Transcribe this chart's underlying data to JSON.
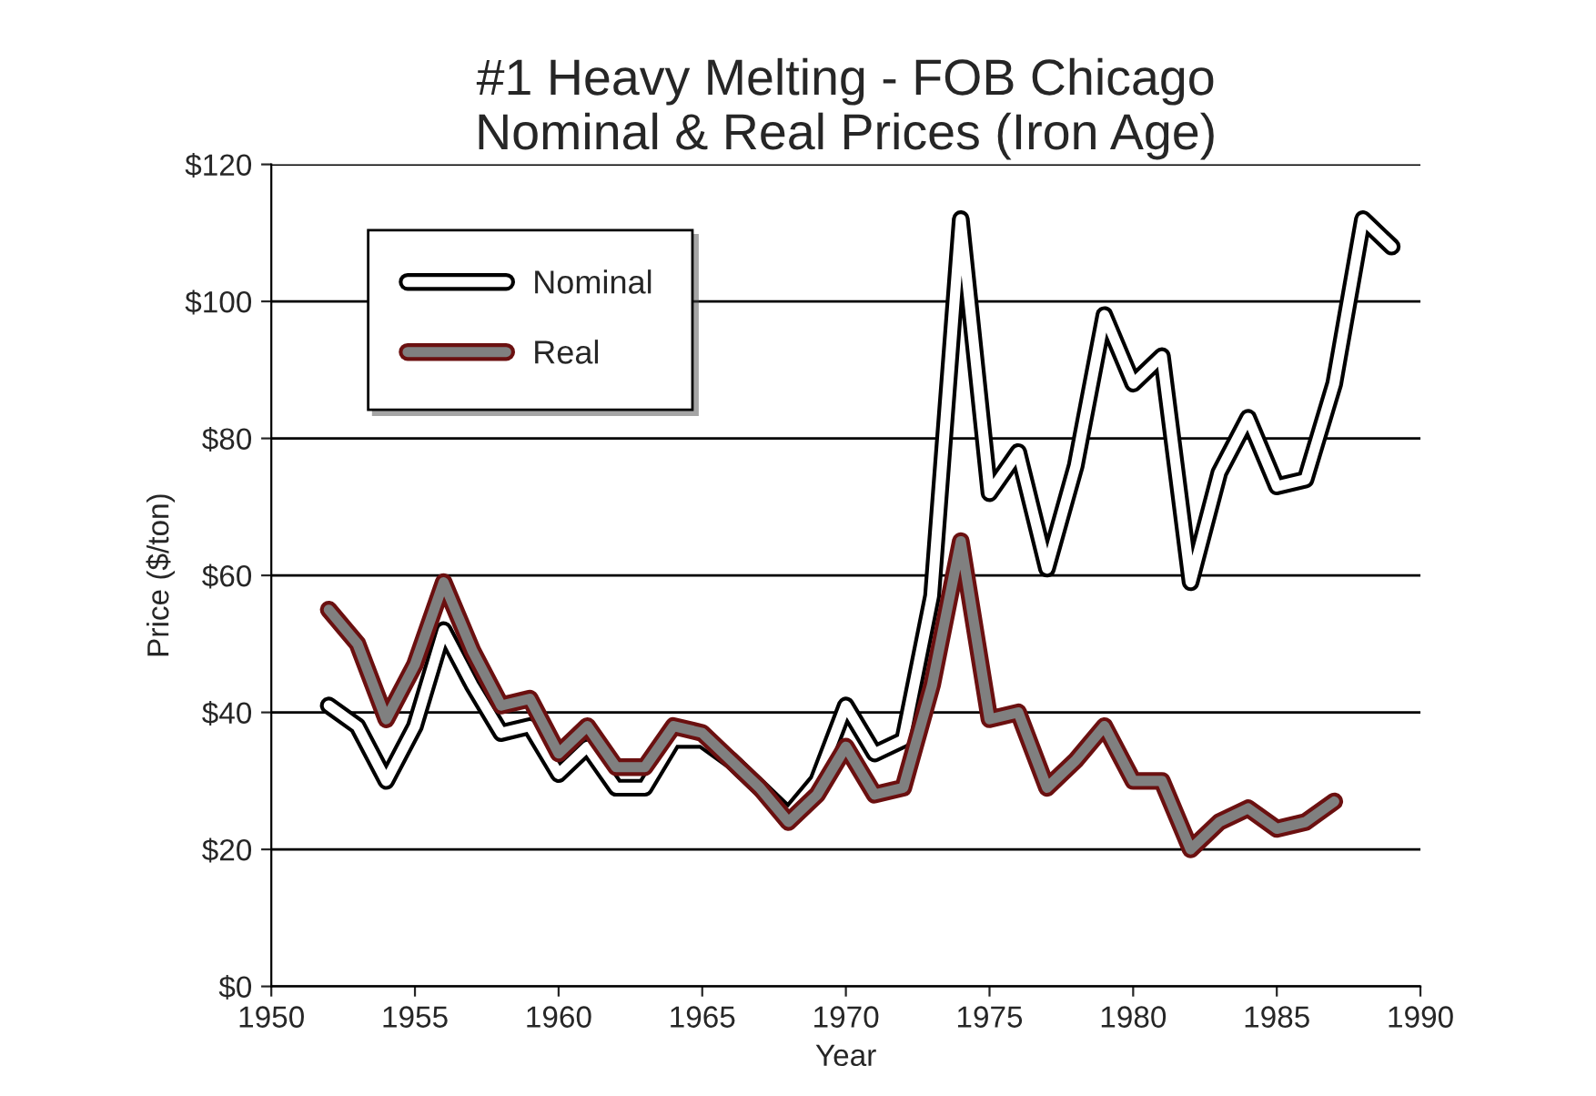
{
  "chart_data": {
    "type": "line",
    "title": "#1 Heavy Melting - FOB Chicago\nNominal & Real Prices (Iron Age)",
    "xlabel": "Year",
    "ylabel": "Price ($/ton)",
    "x": [
      1952,
      1953,
      1954,
      1955,
      1956,
      1957,
      1958,
      1959,
      1960,
      1961,
      1962,
      1963,
      1964,
      1965,
      1966,
      1967,
      1968,
      1969,
      1970,
      1971,
      1972,
      1973,
      1974,
      1975,
      1976,
      1977,
      1978,
      1979,
      1980,
      1981,
      1982,
      1983,
      1984,
      1985,
      1986,
      1987,
      1988,
      1989
    ],
    "series": [
      {
        "name": "Nominal",
        "color": "#ffffff",
        "values": [
          41,
          38,
          30,
          38,
          52,
          44,
          37,
          38,
          31,
          35,
          29,
          29,
          36,
          36,
          33,
          29,
          25,
          30,
          41,
          34,
          36,
          57,
          112,
          72,
          78,
          61,
          76,
          98,
          88,
          92,
          59,
          75,
          83,
          73,
          74,
          88,
          112,
          108
        ]
      },
      {
        "name": "Real",
        "color": "#808080",
        "values": [
          55,
          50,
          39,
          47,
          59,
          49,
          41,
          42,
          34,
          38,
          32,
          32,
          38,
          37,
          33,
          29,
          24,
          28,
          35,
          28,
          29,
          44,
          65,
          39,
          40,
          29,
          33,
          38,
          30,
          30,
          20,
          24,
          26,
          23,
          24,
          27,
          null,
          null
        ]
      }
    ],
    "xlim": [
      1950,
      1990
    ],
    "xticks": [
      1950,
      1955,
      1960,
      1965,
      1970,
      1975,
      1980,
      1985,
      1990
    ],
    "ylim": [
      0,
      120
    ],
    "yticks": [
      {
        "value": 0,
        "label": "$0"
      },
      {
        "value": 20,
        "label": "$20"
      },
      {
        "value": 40,
        "label": "$40"
      },
      {
        "value": 60,
        "label": "$60"
      },
      {
        "value": 80,
        "label": "$80"
      },
      {
        "value": 100,
        "label": "$100"
      },
      {
        "value": 120,
        "label": "$120"
      }
    ],
    "grid": "y",
    "legend": "top left",
    "marker": "none",
    "line_style": "solid"
  }
}
